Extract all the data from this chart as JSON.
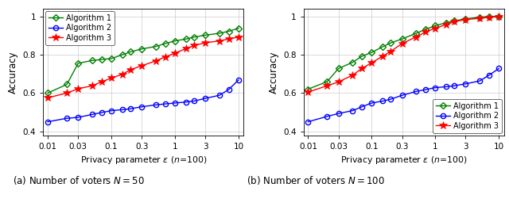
{
  "epsilon": [
    0.01,
    0.02,
    0.03,
    0.05,
    0.07,
    0.1,
    0.15,
    0.2,
    0.3,
    0.5,
    0.7,
    1.0,
    1.5,
    2.0,
    3.0,
    5.0,
    7.0,
    10.0
  ],
  "N50_alg1": [
    0.6,
    0.645,
    0.755,
    0.77,
    0.775,
    0.78,
    0.8,
    0.815,
    0.83,
    0.843,
    0.858,
    0.872,
    0.882,
    0.892,
    0.902,
    0.912,
    0.922,
    0.938
  ],
  "N50_alg2": [
    0.45,
    0.468,
    0.473,
    0.488,
    0.498,
    0.508,
    0.513,
    0.518,
    0.528,
    0.538,
    0.543,
    0.548,
    0.553,
    0.558,
    0.572,
    0.588,
    0.618,
    0.668
  ],
  "N50_alg3": [
    0.575,
    0.6,
    0.622,
    0.638,
    0.658,
    0.678,
    0.698,
    0.722,
    0.742,
    0.768,
    0.788,
    0.808,
    0.832,
    0.848,
    0.862,
    0.872,
    0.882,
    0.892
  ],
  "N100_alg1": [
    0.62,
    0.66,
    0.728,
    0.76,
    0.792,
    0.812,
    0.842,
    0.862,
    0.882,
    0.912,
    0.932,
    0.952,
    0.967,
    0.977,
    0.987,
    0.996,
    0.999,
    1.0
  ],
  "N100_alg2": [
    0.45,
    0.478,
    0.493,
    0.508,
    0.528,
    0.548,
    0.558,
    0.568,
    0.588,
    0.608,
    0.618,
    0.628,
    0.633,
    0.638,
    0.648,
    0.663,
    0.693,
    0.728
  ],
  "N100_alg3": [
    0.605,
    0.638,
    0.658,
    0.693,
    0.728,
    0.758,
    0.793,
    0.818,
    0.858,
    0.893,
    0.918,
    0.938,
    0.958,
    0.973,
    0.983,
    0.99,
    0.995,
    0.998
  ],
  "xticks": [
    0.01,
    0.03,
    0.1,
    0.3,
    1,
    3,
    10
  ],
  "xticklabels": [
    "0.01",
    "0.03",
    "0.1",
    "0.3",
    "1",
    "3",
    "10"
  ],
  "yticks": [
    0.4,
    0.6,
    0.8,
    1.0
  ],
  "yticklabels": [
    "0.4",
    "0.6",
    "0.8",
    "1"
  ],
  "ylabel": "Accuracy",
  "xlabel": "Privacy parameter $\\epsilon$ ($n$=100)",
  "color_alg1": "#008000",
  "color_alg2": "#0000ff",
  "color_alg3": "#ff0000",
  "caption_a": "(a) Number of voters $N = 50$",
  "caption_b": "(b) Number of voters $N = 100$"
}
